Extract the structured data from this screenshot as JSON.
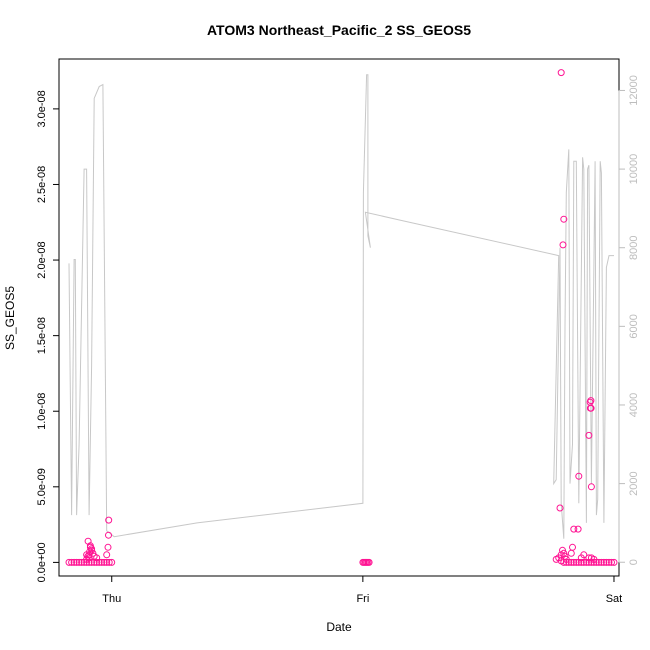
{
  "chart_data": {
    "type": "scatter",
    "title": "ATOM3 Northeast_Pacific_2 SS_GEOS5",
    "xlabel": "Date",
    "ylabel": "SS_GEOS5",
    "x_ticks": [
      "Thu",
      "Fri",
      "Sat"
    ],
    "xlim": [
      -0.21,
      2.02
    ],
    "ylim": [
      -9e-10,
      3.33e-08
    ],
    "y_ticks": [
      {
        "v": 0,
        "label": "0.0e+00"
      },
      {
        "v": 5e-09,
        "label": "5.0e-09"
      },
      {
        "v": 1e-08,
        "label": "1.0e-08"
      },
      {
        "v": 1.5e-08,
        "label": "1.5e-08"
      },
      {
        "v": 2e-08,
        "label": "2.0e-08"
      },
      {
        "v": 2.5e-08,
        "label": "2.5e-08"
      },
      {
        "v": 3e-08,
        "label": "3.0e-08"
      }
    ],
    "y2lim": [
      -350,
      12800
    ],
    "y2_ticks": [
      {
        "v": 0,
        "label": "0"
      },
      {
        "v": 2000,
        "label": "2000"
      },
      {
        "v": 4000,
        "label": "4000"
      },
      {
        "v": 6000,
        "label": "6000"
      },
      {
        "v": 8000,
        "label": "8000"
      },
      {
        "v": 10000,
        "label": "10000"
      },
      {
        "v": 12000,
        "label": "12000"
      }
    ],
    "colors": {
      "points": "#ff1493",
      "altitude": "#c8c8c8"
    },
    "series": [
      {
        "values": [
          [
            -0.17,
            0.0
          ],
          [
            -0.16,
            0.0
          ],
          [
            -0.15,
            0.0
          ],
          [
            -0.14,
            0.0
          ],
          [
            -0.13,
            0.0
          ],
          [
            -0.12,
            0.0
          ],
          [
            -0.11,
            0.0
          ],
          [
            -0.1,
            0.0
          ],
          [
            -0.09,
            0.0
          ],
          [
            -0.08,
            0.0
          ],
          [
            -0.07,
            0.0
          ],
          [
            -0.06,
            0.0
          ],
          [
            -0.05,
            0.0
          ],
          [
            -0.04,
            0.0
          ],
          [
            -0.03,
            0.0
          ],
          [
            -0.02,
            0.0
          ],
          [
            -0.01,
            0.0
          ],
          [
            0.0,
            0.0
          ],
          [
            -0.1,
            2e-10
          ],
          [
            -0.095,
            4e-10
          ],
          [
            -0.09,
            5e-10
          ],
          [
            -0.088,
            7e-10
          ],
          [
            -0.085,
            1e-09
          ],
          [
            -0.08,
            8e-10
          ],
          [
            -0.075,
            6e-10
          ],
          [
            -0.07,
            4e-10
          ],
          [
            -0.06,
            3e-10
          ],
          [
            -0.09,
            3e-10
          ],
          [
            -0.1,
            5e-10
          ],
          [
            -0.094,
            1.4e-09
          ],
          [
            -0.085,
            1.1e-09
          ],
          [
            -0.08,
            9e-10
          ],
          [
            -0.02,
            5e-10
          ],
          [
            -0.015,
            1e-09
          ],
          [
            -0.013,
            1.8e-09
          ],
          [
            -0.012,
            2.8e-09
          ],
          [
            1.0,
            0.0
          ],
          [
            1.005,
            0.0
          ],
          [
            1.01,
            0.0
          ],
          [
            1.015,
            0.0
          ],
          [
            1.02,
            0.0
          ],
          [
            1.025,
            0.0
          ],
          [
            1.77,
            2e-10
          ],
          [
            1.78,
            3e-10
          ],
          [
            1.79,
            1e-10
          ],
          [
            1.8,
            0.0
          ],
          [
            1.81,
            0.0
          ],
          [
            1.82,
            0.0
          ],
          [
            1.83,
            0.0
          ],
          [
            1.84,
            0.0
          ],
          [
            1.85,
            0.0
          ],
          [
            1.86,
            0.0
          ],
          [
            1.87,
            0.0
          ],
          [
            1.88,
            0.0
          ],
          [
            1.89,
            0.0
          ],
          [
            1.9,
            0.0
          ],
          [
            1.91,
            0.0
          ],
          [
            1.92,
            0.0
          ],
          [
            1.93,
            0.0
          ],
          [
            1.94,
            0.0
          ],
          [
            1.95,
            0.0
          ],
          [
            1.96,
            0.0
          ],
          [
            1.97,
            0.0
          ],
          [
            1.98,
            0.0
          ],
          [
            1.99,
            0.0
          ],
          [
            2.0,
            0.0
          ],
          [
            1.785,
            3.6e-09
          ],
          [
            1.79,
            5e-10
          ],
          [
            1.795,
            8e-10
          ],
          [
            1.8,
            6e-10
          ],
          [
            1.805,
            4e-10
          ],
          [
            1.81,
            2e-10
          ],
          [
            1.79,
            3.24e-08
          ],
          [
            1.8,
            2.27e-08
          ],
          [
            1.797,
            2.1e-08
          ],
          [
            1.83,
            6e-10
          ],
          [
            1.835,
            1e-09
          ],
          [
            1.84,
            2.2e-09
          ],
          [
            1.86,
            5.7e-09
          ],
          [
            1.857,
            2.2e-09
          ],
          [
            1.87,
            3e-10
          ],
          [
            1.88,
            5e-10
          ],
          [
            1.9,
            3e-10
          ],
          [
            1.905,
            1.06e-08
          ],
          [
            1.908,
            1.07e-08
          ],
          [
            1.906,
            1.02e-08
          ],
          [
            1.909,
            1.02e-08
          ],
          [
            1.9,
            8.4e-09
          ],
          [
            1.91,
            5e-09
          ],
          [
            1.91,
            3e-10
          ],
          [
            1.92,
            2e-10
          ]
        ]
      }
    ],
    "altitude_axis": {
      "values": [
        [
          -0.17,
          7600
        ],
        [
          -0.16,
          1200
        ],
        [
          -0.15,
          7700
        ],
        [
          -0.145,
          7700
        ],
        [
          -0.14,
          1200
        ],
        [
          -0.13,
          3000
        ],
        [
          -0.11,
          10000
        ],
        [
          -0.1,
          10000
        ],
        [
          -0.09,
          1200
        ],
        [
          -0.08,
          5000
        ],
        [
          -0.07,
          11800
        ],
        [
          -0.05,
          12100
        ],
        [
          -0.035,
          12150
        ],
        [
          -0.02,
          800
        ],
        [
          0.01,
          650
        ],
        [
          0.34,
          1000
        ],
        [
          1.0,
          1500
        ],
        [
          1.002,
          9400
        ],
        [
          1.015,
          12400
        ],
        [
          1.02,
          12400
        ],
        [
          1.02,
          8300
        ],
        [
          1.03,
          8000
        ],
        [
          1.01,
          8900
        ],
        [
          1.15,
          8700
        ],
        [
          1.78,
          7800
        ],
        [
          1.76,
          2000
        ],
        [
          1.77,
          2100
        ],
        [
          1.785,
          8000
        ],
        [
          1.79,
          1500
        ],
        [
          1.8,
          600
        ],
        [
          1.805,
          6000
        ],
        [
          1.81,
          9400
        ],
        [
          1.82,
          10500
        ],
        [
          1.825,
          2000
        ],
        [
          1.835,
          3000
        ],
        [
          1.84,
          10200
        ],
        [
          1.85,
          10200
        ],
        [
          1.86,
          1500
        ],
        [
          1.875,
          10300
        ],
        [
          1.88,
          10000
        ],
        [
          1.89,
          1000
        ],
        [
          1.895,
          10000
        ],
        [
          1.9,
          10100
        ],
        [
          1.91,
          2000
        ],
        [
          1.925,
          10200
        ],
        [
          1.93,
          1200
        ],
        [
          1.935,
          1600
        ],
        [
          1.945,
          10200
        ],
        [
          1.95,
          9900
        ],
        [
          1.96,
          1000
        ],
        [
          1.97,
          7500
        ],
        [
          1.98,
          7800
        ],
        [
          1.985,
          7800
        ],
        [
          2.0,
          7800
        ]
      ]
    }
  }
}
